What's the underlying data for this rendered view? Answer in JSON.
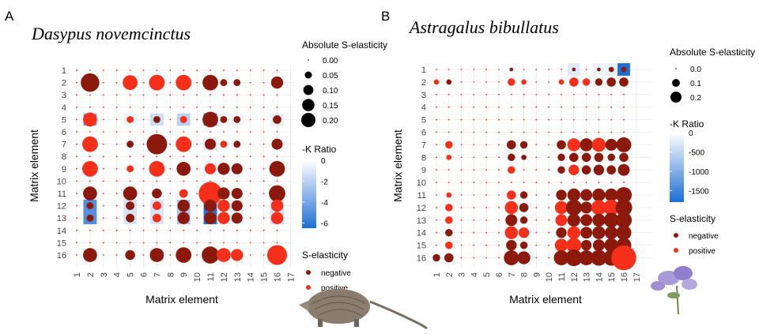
{
  "colors": {
    "negative": "#8b1a0c",
    "positive": "#f52f1a",
    "tile_low": "#1f6ed4",
    "tile_high": "#ffffff",
    "grid": "#ebebeb"
  },
  "chart_data": [
    {
      "type": "heatmap",
      "panel_label": "A",
      "title": "Dasypus novemcinctus",
      "xlabel": "Matrix element",
      "ylabel": "Matrix element",
      "x_ticks": [
        "1",
        "2",
        "3",
        "4",
        "5",
        "6",
        "7",
        "8",
        "9",
        "10",
        "11",
        "12",
        "13",
        "14",
        "15",
        "16",
        "17"
      ],
      "y_ticks": [
        "1",
        "2",
        "3",
        "4",
        "5",
        "6",
        "7",
        "8",
        "9",
        "10",
        "11",
        "12",
        "13",
        "14",
        "15",
        "16"
      ],
      "size_legend": {
        "title": "Absolute S-elasticity",
        "values": [
          0.0,
          0.05,
          0.1,
          0.15,
          0.2
        ],
        "labels": [
          "0.00",
          "0.05",
          "0.10",
          "0.15",
          "0.20"
        ]
      },
      "fill_legend": {
        "title": "-K Ratio",
        "range": [
          -6.5,
          0
        ],
        "ticks": [
          0,
          -2,
          -4,
          -6
        ],
        "labels": [
          "0",
          "-2",
          "-4",
          "-6"
        ]
      },
      "sign_legend": {
        "title": "S-elasticity",
        "labels": [
          "negative",
          "positive"
        ]
      },
      "tiles": [
        [
          5,
          2,
          -4
        ],
        [
          5,
          5,
          -0.5
        ],
        [
          5,
          7,
          -1.5
        ],
        [
          5,
          9,
          -2
        ],
        [
          5,
          11,
          -5
        ],
        [
          5,
          12,
          -0.4
        ],
        [
          5,
          13,
          -0.4
        ],
        [
          5,
          16,
          -0.6
        ],
        [
          7,
          11,
          -1
        ],
        [
          9,
          11,
          -0.6
        ],
        [
          11,
          11,
          -4
        ],
        [
          12,
          2,
          -5
        ],
        [
          12,
          5,
          -1.2
        ],
        [
          12,
          7,
          -1.2
        ],
        [
          12,
          9,
          -2.5
        ],
        [
          12,
          11,
          -6.5
        ],
        [
          12,
          12,
          -0.6
        ],
        [
          12,
          13,
          -0.6
        ],
        [
          12,
          16,
          -1.5
        ],
        [
          13,
          2,
          -5
        ],
        [
          13,
          5,
          -1.2
        ],
        [
          13,
          7,
          -1.2
        ],
        [
          13,
          9,
          -2.5
        ],
        [
          13,
          11,
          -6.5
        ],
        [
          13,
          12,
          -0.6
        ],
        [
          13,
          13,
          -0.6
        ],
        [
          13,
          16,
          -1.5
        ],
        [
          16,
          2,
          -1.5
        ],
        [
          16,
          7,
          -1.5
        ],
        [
          16,
          9,
          -0.5
        ],
        [
          16,
          11,
          -2
        ],
        [
          16,
          12,
          -0.3
        ]
      ],
      "points": [
        [
          2,
          2,
          0.14,
          "negative"
        ],
        [
          2,
          5,
          0.09,
          "positive"
        ],
        [
          2,
          7,
          0.1,
          "positive"
        ],
        [
          2,
          9,
          0.1,
          "positive"
        ],
        [
          2,
          11,
          0.1,
          "negative"
        ],
        [
          2,
          12,
          0.02,
          "negative"
        ],
        [
          2,
          13,
          0.02,
          "negative"
        ],
        [
          2,
          16,
          0.06,
          "negative"
        ],
        [
          5,
          2,
          0.08,
          "positive"
        ],
        [
          5,
          5,
          0.02,
          "positive"
        ],
        [
          5,
          7,
          0.02,
          "negative"
        ],
        [
          5,
          9,
          0.02,
          "positive"
        ],
        [
          5,
          11,
          0.1,
          "negative"
        ],
        [
          5,
          12,
          0.02,
          "negative"
        ],
        [
          5,
          13,
          0.02,
          "negative"
        ],
        [
          5,
          16,
          0.03,
          "negative"
        ],
        [
          7,
          2,
          0.1,
          "positive"
        ],
        [
          7,
          5,
          0.02,
          "negative"
        ],
        [
          7,
          7,
          0.17,
          "negative"
        ],
        [
          7,
          9,
          0.1,
          "positive"
        ],
        [
          7,
          11,
          0.05,
          "negative"
        ],
        [
          7,
          12,
          0.02,
          "positive"
        ],
        [
          7,
          13,
          0.02,
          "negative"
        ],
        [
          7,
          16,
          0.05,
          "negative"
        ],
        [
          9,
          2,
          0.1,
          "positive"
        ],
        [
          9,
          5,
          0.02,
          "positive"
        ],
        [
          9,
          7,
          0.1,
          "positive"
        ],
        [
          9,
          9,
          0.08,
          "negative"
        ],
        [
          9,
          11,
          0.05,
          "positive"
        ],
        [
          9,
          12,
          0.06,
          "negative"
        ],
        [
          9,
          13,
          0.05,
          "negative"
        ],
        [
          9,
          16,
          0.1,
          "negative"
        ],
        [
          11,
          2,
          0.08,
          "negative"
        ],
        [
          11,
          5,
          0.08,
          "negative"
        ],
        [
          11,
          7,
          0.04,
          "negative"
        ],
        [
          11,
          9,
          0.03,
          "positive"
        ],
        [
          11,
          11,
          0.22,
          "positive"
        ],
        [
          11,
          12,
          0.06,
          "negative"
        ],
        [
          11,
          13,
          0.05,
          "negative"
        ],
        [
          11,
          16,
          0.11,
          "negative"
        ],
        [
          12,
          2,
          0.02,
          "negative"
        ],
        [
          12,
          5,
          0.03,
          "negative"
        ],
        [
          12,
          7,
          0.03,
          "positive"
        ],
        [
          12,
          9,
          0.06,
          "negative"
        ],
        [
          12,
          11,
          0.06,
          "negative"
        ],
        [
          12,
          12,
          0.06,
          "positive"
        ],
        [
          12,
          13,
          0.05,
          "negative"
        ],
        [
          12,
          16,
          0.06,
          "positive"
        ],
        [
          13,
          2,
          0.02,
          "negative"
        ],
        [
          13,
          5,
          0.03,
          "negative"
        ],
        [
          13,
          7,
          0.03,
          "positive"
        ],
        [
          13,
          9,
          0.06,
          "negative"
        ],
        [
          13,
          11,
          0.06,
          "negative"
        ],
        [
          13,
          12,
          0.06,
          "positive"
        ],
        [
          13,
          13,
          0.05,
          "negative"
        ],
        [
          13,
          16,
          0.06,
          "positive"
        ],
        [
          16,
          2,
          0.08,
          "negative"
        ],
        [
          16,
          5,
          0.04,
          "negative"
        ],
        [
          16,
          7,
          0.08,
          "negative"
        ],
        [
          16,
          9,
          0.1,
          "negative"
        ],
        [
          16,
          11,
          0.12,
          "negative"
        ],
        [
          16,
          12,
          0.08,
          "positive"
        ],
        [
          16,
          13,
          0.06,
          "positive"
        ],
        [
          16,
          16,
          0.16,
          "positive"
        ]
      ]
    },
    {
      "type": "heatmap",
      "panel_label": "B",
      "title": "Astragalus bibullatus",
      "xlabel": "Matrix element",
      "ylabel": "Matrix element",
      "x_ticks": [
        "1",
        "2",
        "3",
        "4",
        "5",
        "6",
        "7",
        "8",
        "9",
        "10",
        "11",
        "12",
        "13",
        "14",
        "15",
        "16",
        "17"
      ],
      "y_ticks": [
        "1",
        "2",
        "3",
        "4",
        "5",
        "6",
        "7",
        "8",
        "9",
        "10",
        "11",
        "12",
        "13",
        "14",
        "15",
        "16"
      ],
      "size_legend": {
        "title": "Absolute S-elasticity",
        "values": [
          0.0,
          0.1,
          0.2
        ],
        "labels": [
          "0.0",
          "0.1",
          "0.2"
        ]
      },
      "fill_legend": {
        "title": "-K Ratio",
        "range": [
          -1800,
          0
        ],
        "ticks": [
          0,
          -500,
          -1000,
          -1500
        ],
        "labels": [
          "0",
          "-500",
          "-1000",
          "-1500"
        ]
      },
      "sign_legend": {
        "title": "S-elasticity",
        "labels": [
          "negative",
          "positive"
        ]
      },
      "tiles": [
        [
          1,
          7,
          -40
        ],
        [
          1,
          12,
          -250
        ],
        [
          1,
          14,
          -150
        ],
        [
          1,
          15,
          -180
        ],
        [
          1,
          16,
          -1800
        ]
      ],
      "points": [
        [
          1,
          7,
          0.005,
          "negative"
        ],
        [
          1,
          12,
          0.005,
          "negative"
        ],
        [
          1,
          14,
          0.005,
          "negative"
        ],
        [
          1,
          15,
          0.01,
          "negative"
        ],
        [
          1,
          16,
          0.01,
          "negative"
        ],
        [
          2,
          1,
          0.01,
          "positive"
        ],
        [
          2,
          2,
          0.01,
          "negative"
        ],
        [
          2,
          7,
          0.02,
          "positive"
        ],
        [
          2,
          8,
          0.01,
          "positive"
        ],
        [
          2,
          11,
          0.01,
          "positive"
        ],
        [
          2,
          12,
          0.03,
          "positive"
        ],
        [
          2,
          13,
          0.02,
          "positive"
        ],
        [
          2,
          14,
          0.02,
          "negative"
        ],
        [
          2,
          15,
          0.03,
          "negative"
        ],
        [
          2,
          16,
          0.03,
          "negative"
        ],
        [
          7,
          2,
          0.02,
          "positive"
        ],
        [
          7,
          7,
          0.03,
          "negative"
        ],
        [
          7,
          8,
          0.02,
          "negative"
        ],
        [
          7,
          11,
          0.03,
          "negative"
        ],
        [
          7,
          12,
          0.06,
          "positive"
        ],
        [
          7,
          13,
          0.06,
          "negative"
        ],
        [
          7,
          14,
          0.07,
          "positive"
        ],
        [
          7,
          15,
          0.05,
          "negative"
        ],
        [
          7,
          16,
          0.08,
          "negative"
        ],
        [
          8,
          2,
          0.01,
          "positive"
        ],
        [
          8,
          7,
          0.02,
          "negative"
        ],
        [
          8,
          8,
          0.01,
          "negative"
        ],
        [
          8,
          11,
          0.02,
          "negative"
        ],
        [
          8,
          12,
          0.03,
          "negative"
        ],
        [
          8,
          13,
          0.03,
          "negative"
        ],
        [
          8,
          14,
          0.03,
          "negative"
        ],
        [
          8,
          15,
          0.02,
          "negative"
        ],
        [
          8,
          16,
          0.03,
          "negative"
        ],
        [
          9,
          7,
          0.02,
          "positive"
        ],
        [
          9,
          11,
          0.02,
          "negative"
        ],
        [
          9,
          12,
          0.04,
          "positive"
        ],
        [
          9,
          13,
          0.03,
          "negative"
        ],
        [
          9,
          14,
          0.04,
          "negative"
        ],
        [
          9,
          15,
          0.03,
          "negative"
        ],
        [
          9,
          16,
          0.05,
          "negative"
        ],
        [
          11,
          2,
          0.01,
          "positive"
        ],
        [
          11,
          7,
          0.03,
          "positive"
        ],
        [
          11,
          8,
          0.02,
          "negative"
        ],
        [
          11,
          11,
          0.04,
          "negative"
        ],
        [
          11,
          12,
          0.06,
          "negative"
        ],
        [
          11,
          13,
          0.05,
          "negative"
        ],
        [
          11,
          14,
          0.06,
          "negative"
        ],
        [
          11,
          15,
          0.06,
          "negative"
        ],
        [
          11,
          16,
          0.09,
          "negative"
        ],
        [
          12,
          2,
          0.02,
          "positive"
        ],
        [
          12,
          7,
          0.06,
          "positive"
        ],
        [
          12,
          8,
          0.03,
          "negative"
        ],
        [
          12,
          11,
          0.06,
          "positive"
        ],
        [
          12,
          12,
          0.09,
          "negative"
        ],
        [
          12,
          13,
          0.05,
          "negative"
        ],
        [
          12,
          14,
          0.08,
          "positive"
        ],
        [
          12,
          15,
          0.09,
          "positive"
        ],
        [
          12,
          16,
          0.1,
          "negative"
        ],
        [
          13,
          2,
          0.02,
          "positive"
        ],
        [
          13,
          7,
          0.05,
          "negative"
        ],
        [
          13,
          8,
          0.02,
          "negative"
        ],
        [
          13,
          11,
          0.05,
          "positive"
        ],
        [
          13,
          12,
          0.06,
          "negative"
        ],
        [
          13,
          13,
          0.05,
          "negative"
        ],
        [
          13,
          14,
          0.06,
          "negative"
        ],
        [
          13,
          15,
          0.08,
          "negative"
        ],
        [
          13,
          16,
          0.09,
          "negative"
        ],
        [
          14,
          2,
          0.02,
          "negative"
        ],
        [
          14,
          7,
          0.06,
          "positive"
        ],
        [
          14,
          8,
          0.04,
          "positive"
        ],
        [
          14,
          11,
          0.04,
          "negative"
        ],
        [
          14,
          12,
          0.06,
          "positive"
        ],
        [
          14,
          13,
          0.05,
          "negative"
        ],
        [
          14,
          14,
          0.06,
          "negative"
        ],
        [
          14,
          15,
          0.06,
          "negative"
        ],
        [
          14,
          16,
          0.08,
          "negative"
        ],
        [
          15,
          2,
          0.02,
          "positive"
        ],
        [
          15,
          7,
          0.04,
          "negative"
        ],
        [
          15,
          8,
          0.02,
          "negative"
        ],
        [
          15,
          11,
          0.06,
          "positive"
        ],
        [
          15,
          12,
          0.08,
          "positive"
        ],
        [
          15,
          13,
          0.04,
          "negative"
        ],
        [
          15,
          14,
          0.05,
          "negative"
        ],
        [
          15,
          15,
          0.07,
          "negative"
        ],
        [
          15,
          16,
          0.08,
          "negative"
        ],
        [
          16,
          1,
          0.02,
          "negative"
        ],
        [
          16,
          2,
          0.03,
          "negative"
        ],
        [
          16,
          7,
          0.08,
          "negative"
        ],
        [
          16,
          8,
          0.06,
          "negative"
        ],
        [
          16,
          11,
          0.08,
          "negative"
        ],
        [
          16,
          12,
          0.1,
          "negative"
        ],
        [
          16,
          13,
          0.08,
          "negative"
        ],
        [
          16,
          14,
          0.09,
          "negative"
        ],
        [
          16,
          15,
          0.09,
          "negative"
        ],
        [
          16,
          16,
          0.22,
          "positive"
        ]
      ]
    }
  ]
}
